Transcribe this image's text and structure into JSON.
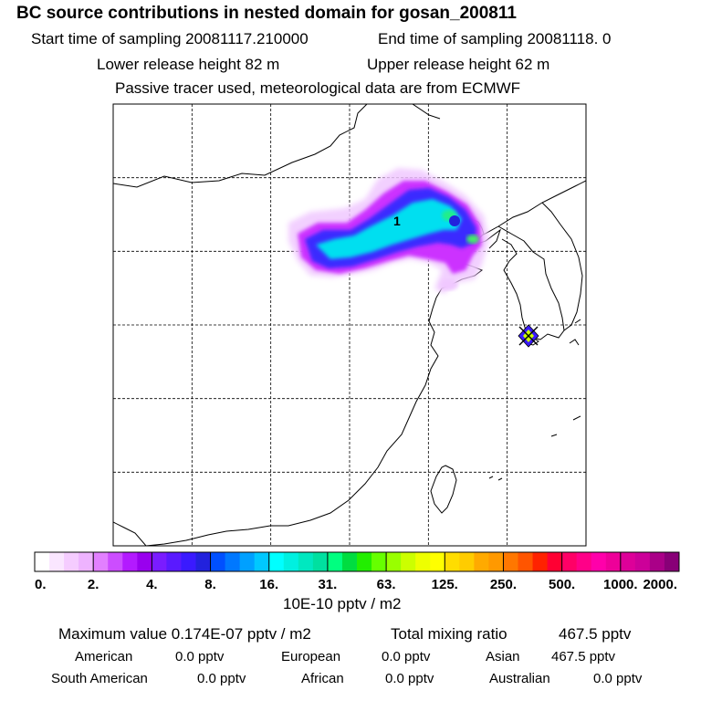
{
  "header": {
    "title": "BC  source contributions in nested domain for gosan_200811",
    "start_label": "Start time of sampling 20081117.210000",
    "end_label": "End time of sampling 20081118.     0",
    "lower_label": "Lower release height   82 m",
    "upper_label": "Upper release height   62 m",
    "tracer_label": "Passive tracer used, meteorological data are from ECMWF"
  },
  "chart_data": {
    "type": "heatmap",
    "title": "BC  source contributions in nested domain for gosan_200811",
    "grid": true,
    "grid_cols": 6,
    "grid_rows": 6,
    "annotation": "1",
    "colorbar": {
      "tick_labels": [
        "0.",
        "2.",
        "4.",
        "8.",
        "16.",
        "31.",
        "63.",
        "125.",
        "250.",
        "500.",
        "1000.",
        "2000."
      ],
      "unit": "10E-10 pptv / m2",
      "colors": [
        [
          "#ffffff",
          "#fae6ff",
          "#f5ccff",
          "#eeb3ff"
        ],
        [
          "#e280ff",
          "#cc4dff",
          "#b31aff",
          "#9900ee"
        ],
        [
          "#7a1cff",
          "#5a1aff",
          "#3a1aff",
          "#2222dd"
        ],
        [
          "#0050ff",
          "#0078ff",
          "#00a0ff",
          "#00c8ff"
        ],
        [
          "#00ffff",
          "#00f0e0",
          "#00e8c0",
          "#00e0a0"
        ],
        [
          "#00ff80",
          "#00dd40",
          "#22ee00",
          "#66ff00"
        ],
        [
          "#99ff00",
          "#ccff00",
          "#eeff00",
          "#ffff00"
        ],
        [
          "#ffdd00",
          "#ffcc00",
          "#ffaa00",
          "#ff9900"
        ],
        [
          "#ff7700",
          "#ff5500",
          "#ff2200",
          "#ff0033"
        ],
        [
          "#ff0066",
          "#ff0088",
          "#ff00aa",
          "#ee0099"
        ],
        [
          "#dd0099",
          "#cc0099",
          "#aa0088",
          "#880077"
        ]
      ]
    }
  },
  "stats": {
    "max_label": "Maximum value  0.174E-07 pptv / m2",
    "total_label": "Total mixing ratio",
    "total_value": "467.5 pptv",
    "american_label": "American",
    "american_value": "0.0 pptv",
    "european_label": "European",
    "european_value": "0.0 pptv",
    "asian_label": "Asian",
    "asian_value": "467.5 pptv",
    "south_american_label": "South American",
    "south_american_value": "0.0 pptv",
    "african_label": "African",
    "african_value": "0.0 pptv",
    "australian_label": "Australian",
    "australian_value": "0.0 pptv"
  }
}
